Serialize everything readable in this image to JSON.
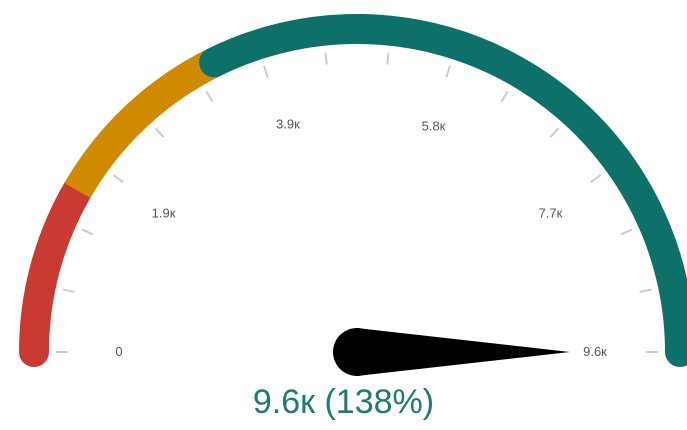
{
  "chart_data": {
    "type": "gauge",
    "title": "",
    "min": 0,
    "max": 9.6,
    "unit": "k",
    "value": 9.6,
    "ticks": [
      {
        "value": 0,
        "label": "0"
      },
      {
        "value": 1.9,
        "label": "1.9к"
      },
      {
        "value": 3.9,
        "label": "3.9к"
      },
      {
        "value": 5.8,
        "label": "5.8к"
      },
      {
        "value": 7.7,
        "label": "7.7к"
      },
      {
        "value": 9.6,
        "label": "9.6к"
      }
    ],
    "bands": [
      {
        "from": 0,
        "to": 1.6,
        "color": "#c93a33"
      },
      {
        "from": 1.6,
        "to": 3.4,
        "color": "#d08a00"
      },
      {
        "from": 3.4,
        "to": 9.6,
        "color": "#0e7169"
      }
    ],
    "readout": {
      "text": "9.6к (138%)",
      "color": "#1f7a73"
    },
    "needle_color": "#000000",
    "minor_tick_color": "#cccccc"
  }
}
